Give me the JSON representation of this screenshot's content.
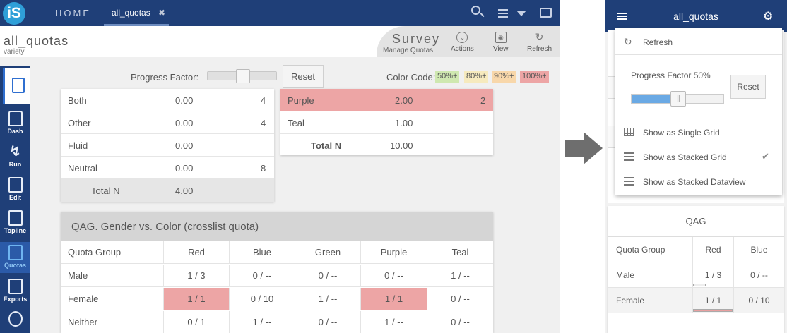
{
  "left": {
    "topbar": {
      "logo": "iS",
      "home": "HOME",
      "tab_label": "all_quotas",
      "tab_close": "✖"
    },
    "header": {
      "title": "all_quotas",
      "subtitle": "variety",
      "survey_title": "Survey",
      "survey_subtitle": "Manage Quotas",
      "actions": [
        {
          "label": "Actions",
          "icon": "chevron-down-icon"
        },
        {
          "label": "View",
          "icon": "eye-icon"
        },
        {
          "label": "Refresh",
          "icon": "refresh-icon"
        }
      ]
    },
    "sidebar": [
      {
        "label": "",
        "icon": "document-icon",
        "active": true
      },
      {
        "label": "Dash",
        "icon": "home-icon"
      },
      {
        "label": "Run",
        "icon": "lightning-icon"
      },
      {
        "label": "Edit",
        "icon": "edit-icon"
      },
      {
        "label": "Topline",
        "icon": "bar-chart-icon"
      },
      {
        "label": "Quotas",
        "icon": "chart-up-icon"
      },
      {
        "label": "Exports",
        "icon": "export-icon"
      },
      {
        "label": "",
        "icon": "users-icon"
      }
    ],
    "controls": {
      "progress_label": "Progress Factor:",
      "progress_value": 0.5,
      "reset_label": "Reset",
      "color_code_label": "Color Code:",
      "badges": [
        {
          "label": "50%+",
          "color": "#cfe8b0"
        },
        {
          "label": "80%+",
          "color": "#f6eabe"
        },
        {
          "label": "90%+",
          "color": "#f8d7aa"
        },
        {
          "label": "100%+",
          "color": "#eda5a5"
        }
      ]
    },
    "table1": {
      "rows": [
        {
          "name": "Both",
          "value": "0.00",
          "count": "4"
        },
        {
          "name": "Other",
          "value": "0.00",
          "count": "4"
        },
        {
          "name": "Fluid",
          "value": "0.00",
          "count": ""
        },
        {
          "name": "Neutral",
          "value": "0.00",
          "count": "8"
        }
      ],
      "total_label": "Total N",
      "total_value": "4.00"
    },
    "table2": {
      "rows": [
        {
          "name": "Purple",
          "value": "2.00",
          "count": "2",
          "highlight": true
        },
        {
          "name": "Teal",
          "value": "1.00",
          "count": ""
        }
      ],
      "total_label": "Total N",
      "total_value": "10.00"
    },
    "crosstab": {
      "title": "QAG. Gender vs. Color (crosslist quota)",
      "headers": [
        "Quota Group",
        "Red",
        "Blue",
        "Green",
        "Purple",
        "Teal"
      ],
      "rows": [
        {
          "cells": [
            "Male",
            "1 / 3",
            "0 / --",
            "0 / --",
            "0 / --",
            "1 / --"
          ],
          "highlight": []
        },
        {
          "cells": [
            "Female",
            "1 / 1",
            "0 / 10",
            "1 / --",
            "1 / 1",
            "0 / --"
          ],
          "highlight": [
            1,
            4
          ]
        },
        {
          "cells": [
            "Neither",
            "0 / 1",
            "1 / --",
            "0 / --",
            "1 / --",
            "0 / --"
          ],
          "highlight": []
        }
      ]
    }
  },
  "right": {
    "title": "all_quotas",
    "menu": {
      "refresh_label": "Refresh",
      "progress_label": "Progress Factor 50%",
      "progress_value": 0.5,
      "reset_label": "Reset",
      "items": [
        {
          "label": "Show as Single Grid",
          "icon": "grid-icon",
          "checked": false
        },
        {
          "label": "Show as Stacked Grid",
          "icon": "lines-icon",
          "checked": true
        },
        {
          "label": "Show as Stacked Dataview",
          "icon": "lines-icon",
          "checked": false
        }
      ]
    },
    "qag": {
      "title": "QAG",
      "headers": [
        "Quota Group",
        "Red",
        "Blue"
      ],
      "rows": [
        {
          "cells": [
            "Male",
            "1 / 3",
            "0 / --"
          ],
          "progress": 0.33
        },
        {
          "cells": [
            "Female",
            "1 / 1",
            "0 / 10"
          ],
          "progress": 1.0
        }
      ]
    }
  }
}
